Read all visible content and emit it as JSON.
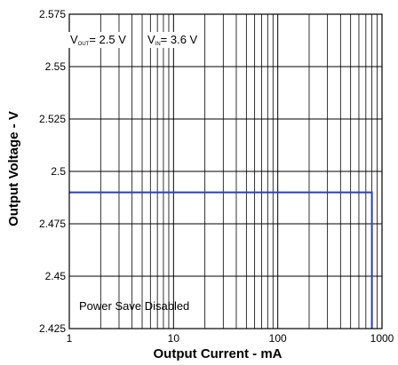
{
  "chart_data": {
    "type": "line",
    "xlabel": "Output Current - mA",
    "ylabel": "Output Voltage - V",
    "xscale": "log",
    "xlim": [
      1,
      1000
    ],
    "ylim": [
      2.425,
      2.575
    ],
    "x_ticks": [
      1,
      10,
      100,
      1000
    ],
    "x_tick_labels": [
      "1",
      "10",
      "100",
      "1000"
    ],
    "y_ticks": [
      2.425,
      2.45,
      2.475,
      2.5,
      2.525,
      2.55,
      2.575
    ],
    "y_tick_labels": [
      "2.425",
      "2.45",
      "2.475",
      "2.5",
      "2.525",
      "2.55",
      "2.575"
    ],
    "grid": true,
    "annotations": {
      "vout_main": "V",
      "vout_sub": "OUT",
      "vout_value": "= 2.5 V",
      "vin_main": "V",
      "vin_sub": "IN",
      "vin_value": "= 3.6 V",
      "mode": "Power Save Disabled"
    },
    "series": [
      {
        "color": "#2b3fbf",
        "x": [
          1,
          800,
          800
        ],
        "y": [
          2.49,
          2.49,
          2.425
        ]
      }
    ]
  }
}
